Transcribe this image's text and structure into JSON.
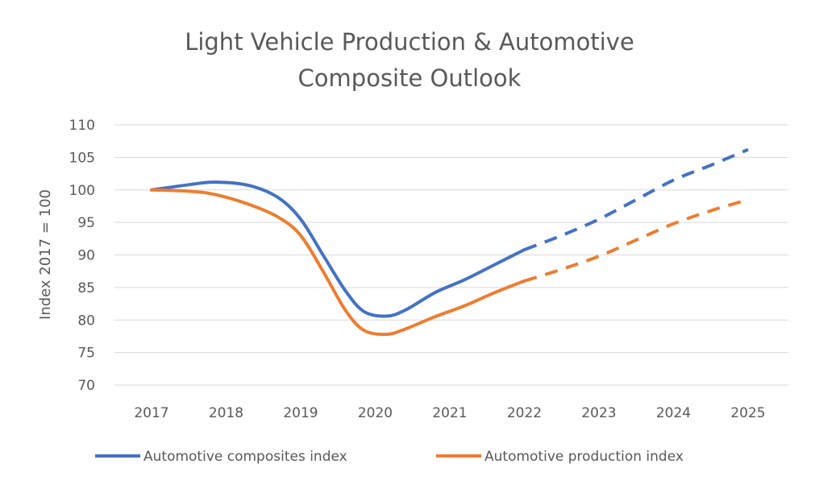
{
  "chart_data": {
    "type": "line",
    "title_lines": [
      "Light Vehicle Production & Automotive",
      "Composite Outlook"
    ],
    "xlabel": "",
    "ylabel": "Index 2017 = 100",
    "ylim": [
      70,
      110
    ],
    "yticks": [
      "70",
      "75",
      "80",
      "85",
      "90",
      "95",
      "100",
      "105",
      "110"
    ],
    "x": [
      "2017",
      "2018",
      "2019",
      "2020",
      "2021",
      "2022",
      "2023",
      "2024",
      "2025"
    ],
    "grid": true,
    "legend_position": "bottom",
    "series": [
      {
        "name": "Automotive composites index",
        "color": "#4472c4",
        "actual": [
          [
            2017,
            100
          ],
          [
            2017.5,
            100.8
          ],
          [
            2017.85,
            101.2
          ],
          [
            2018.3,
            100.7
          ],
          [
            2018.7,
            98.8
          ],
          [
            2019,
            95.5
          ],
          [
            2019.3,
            90
          ],
          [
            2019.6,
            84.5
          ],
          [
            2019.85,
            81.3
          ],
          [
            2020.15,
            80.6
          ],
          [
            2020.4,
            81.5
          ],
          [
            2020.8,
            84.2
          ],
          [
            2021.2,
            86.2
          ],
          [
            2021.6,
            88.5
          ],
          [
            2022,
            90.8
          ]
        ],
        "projected": [
          [
            2022,
            90.8
          ],
          [
            2022.5,
            93.0
          ],
          [
            2023,
            95.5
          ],
          [
            2023.5,
            98.5
          ],
          [
            2024,
            101.5
          ],
          [
            2024.5,
            103.8
          ],
          [
            2025,
            106.2
          ]
        ]
      },
      {
        "name": "Automotive production index",
        "color": "#ed7d31",
        "actual": [
          [
            2017,
            100
          ],
          [
            2017.5,
            99.8
          ],
          [
            2017.85,
            99.3
          ],
          [
            2018.3,
            97.8
          ],
          [
            2018.7,
            95.8
          ],
          [
            2019,
            93
          ],
          [
            2019.3,
            87.5
          ],
          [
            2019.6,
            81.5
          ],
          [
            2019.85,
            78.4
          ],
          [
            2020.15,
            77.8
          ],
          [
            2020.4,
            78.6
          ],
          [
            2020.8,
            80.5
          ],
          [
            2021.2,
            82.2
          ],
          [
            2021.6,
            84.2
          ],
          [
            2022,
            86
          ]
        ],
        "projected": [
          [
            2022,
            86
          ],
          [
            2022.5,
            87.8
          ],
          [
            2023,
            89.8
          ],
          [
            2023.5,
            92.3
          ],
          [
            2024,
            94.8
          ],
          [
            2024.5,
            96.8
          ],
          [
            2025,
            98.5
          ]
        ]
      }
    ]
  }
}
